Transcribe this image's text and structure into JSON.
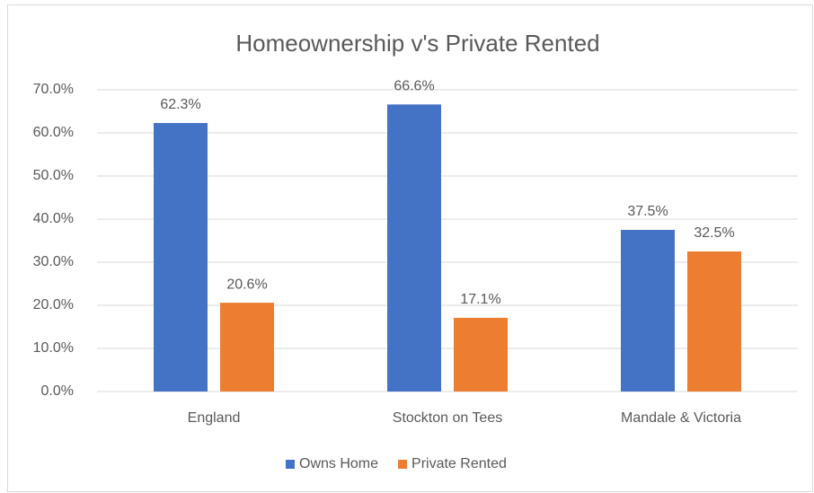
{
  "chart_data": {
    "type": "bar",
    "title": "Homeownership v's Private Rented",
    "categories": [
      "England",
      "Stockton on Tees",
      "Mandale & Victoria"
    ],
    "series": [
      {
        "name": "Owns Home",
        "color": "#4472c4",
        "values": [
          62.3,
          66.6,
          37.5
        ],
        "value_labels": [
          "62.3%",
          "66.6%",
          "37.5%"
        ]
      },
      {
        "name": "Private Rented",
        "color": "#ed7d31",
        "values": [
          20.6,
          17.1,
          32.5
        ],
        "value_labels": [
          "20.6%",
          "17.1%",
          "32.5%"
        ]
      }
    ],
    "ylim": [
      0,
      70
    ],
    "yticks": [
      {
        "value": 0,
        "label": "0.0%"
      },
      {
        "value": 10,
        "label": "10.0%"
      },
      {
        "value": 20,
        "label": "20.0%"
      },
      {
        "value": 30,
        "label": "30.0%"
      },
      {
        "value": 40,
        "label": "40.0%"
      },
      {
        "value": 50,
        "label": "50.0%"
      },
      {
        "value": 60,
        "label": "60.0%"
      },
      {
        "value": 70,
        "label": "70.0%"
      }
    ],
    "grid": true,
    "legend": "bottom"
  }
}
